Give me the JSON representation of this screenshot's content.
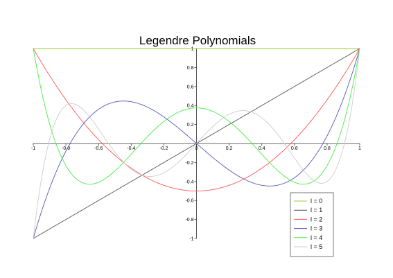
{
  "chart_data": {
    "type": "line",
    "title": "Legendre Polynomials",
    "xlabel": "",
    "ylabel": "",
    "xlim": [
      -1,
      1
    ],
    "ylim": [
      -1,
      1
    ],
    "grid": false,
    "legend_position": "bottom-right",
    "x_ticks": [
      -1,
      -0.8,
      -0.6,
      -0.4,
      -0.2,
      0,
      0.2,
      0.4,
      0.6,
      0.8,
      1
    ],
    "x_tick_labels": [
      "-1",
      "-0.8",
      "-0.6",
      "-0.4",
      "-0.2",
      "0",
      "0.2",
      "0.4",
      "0.6",
      "0.8",
      "1"
    ],
    "y_ticks": [
      1,
      0.8,
      0.6,
      0.4,
      0.2,
      -0.2,
      -0.4,
      -0.6,
      -0.8,
      -1
    ],
    "y_tick_labels": [
      "1",
      "0.8",
      "0.6",
      "0.4",
      "0.2",
      "-0.2",
      "-0.4",
      "-0.6",
      "-0.8",
      "-1"
    ],
    "x": [
      -1,
      -0.9,
      -0.8,
      -0.7,
      -0.6,
      -0.5,
      -0.4,
      -0.3,
      -0.2,
      -0.1,
      0,
      0.1,
      0.2,
      0.3,
      0.4,
      0.5,
      0.6,
      0.7,
      0.8,
      0.9,
      1
    ],
    "series": [
      {
        "name": "l = 0",
        "color": "#9acd32",
        "values": [
          1,
          1,
          1,
          1,
          1,
          1,
          1,
          1,
          1,
          1,
          1,
          1,
          1,
          1,
          1,
          1,
          1,
          1,
          1,
          1,
          1
        ]
      },
      {
        "name": "l = 1",
        "color": "#555555",
        "values": [
          -1,
          -0.9,
          -0.8,
          -0.7,
          -0.6,
          -0.5,
          -0.4,
          -0.3,
          -0.2,
          -0.1,
          0,
          0.1,
          0.2,
          0.3,
          0.4,
          0.5,
          0.6,
          0.7,
          0.8,
          0.9,
          1
        ]
      },
      {
        "name": "l = 2",
        "color": "#ff5555",
        "values": [
          1,
          0.715,
          0.46,
          0.235,
          0.04,
          -0.125,
          -0.26,
          -0.365,
          -0.44,
          -0.485,
          -0.5,
          -0.485,
          -0.44,
          -0.365,
          -0.26,
          -0.125,
          0.04,
          0.235,
          0.46,
          0.715,
          1
        ]
      },
      {
        "name": "l = 3",
        "color": "#5555bb",
        "values": [
          -1,
          -0.4725,
          -0.08,
          0.1925,
          0.36,
          0.4375,
          0.44,
          0.3825,
          0.28,
          0.1475,
          0,
          -0.1475,
          -0.28,
          -0.3825,
          -0.44,
          -0.4375,
          -0.36,
          -0.1925,
          0.08,
          0.4725,
          1
        ]
      },
      {
        "name": "l = 4",
        "color": "#44ee44",
        "values": [
          1,
          0.2079,
          -0.233,
          -0.4121,
          -0.408,
          -0.2891,
          -0.113,
          0.0729,
          0.232,
          0.3379,
          0.375,
          0.3379,
          0.232,
          0.0729,
          -0.113,
          -0.2891,
          -0.408,
          -0.4121,
          -0.233,
          0.2079,
          1
        ]
      },
      {
        "name": "l = 5",
        "color": "#cccccc",
        "values": [
          -1,
          0.1577,
          0.3913,
          0.1253,
          -0.1526,
          -0.2891,
          -0.2706,
          -0.1398,
          0.0064,
          0.1128,
          0,
          -0.1128,
          -0.0064,
          0.1398,
          0.2706,
          0.2891,
          0.1526,
          -0.1253,
          -0.3913,
          -0.1577,
          1
        ]
      }
    ]
  }
}
